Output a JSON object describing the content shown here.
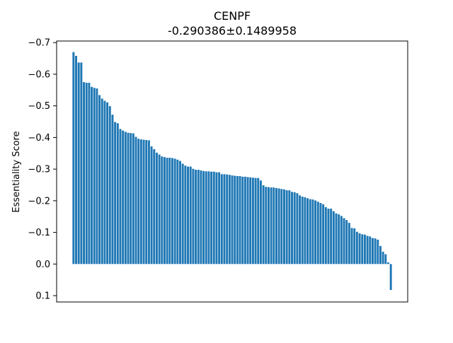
{
  "chart_data": {
    "type": "bar",
    "title": "CENPF",
    "subtitle": "-0.290386±0.1489958",
    "xlabel": "",
    "ylabel": "Essentiality Score",
    "ylim": [
      0.12,
      -0.705
    ],
    "yticks": [
      0.1,
      0.0,
      -0.1,
      -0.2,
      -0.3,
      -0.4,
      -0.5,
      -0.6,
      -0.7
    ],
    "ytick_labels": [
      "0.1",
      "0.0",
      "−0.1",
      "−0.2",
      "−0.3",
      "−0.4",
      "−0.5",
      "−0.6",
      "−0.7"
    ],
    "x_ticks_visible": false,
    "grid": false,
    "bar_color": "#1f77b4",
    "values": [
      -0.67,
      -0.658,
      -0.637,
      -0.637,
      -0.575,
      -0.573,
      -0.573,
      -0.56,
      -0.557,
      -0.555,
      -0.534,
      -0.523,
      -0.516,
      -0.511,
      -0.499,
      -0.472,
      -0.449,
      -0.445,
      -0.427,
      -0.422,
      -0.418,
      -0.415,
      -0.414,
      -0.413,
      -0.402,
      -0.396,
      -0.394,
      -0.393,
      -0.392,
      -0.391,
      -0.372,
      -0.363,
      -0.352,
      -0.346,
      -0.34,
      -0.338,
      -0.336,
      -0.336,
      -0.335,
      -0.333,
      -0.33,
      -0.326,
      -0.317,
      -0.311,
      -0.308,
      -0.308,
      -0.301,
      -0.298,
      -0.298,
      -0.296,
      -0.294,
      -0.293,
      -0.293,
      -0.292,
      -0.292,
      -0.29,
      -0.29,
      -0.284,
      -0.284,
      -0.283,
      -0.282,
      -0.28,
      -0.279,
      -0.278,
      -0.278,
      -0.276,
      -0.276,
      -0.275,
      -0.274,
      -0.273,
      -0.272,
      -0.272,
      -0.264,
      -0.249,
      -0.244,
      -0.243,
      -0.242,
      -0.242,
      -0.24,
      -0.239,
      -0.237,
      -0.236,
      -0.233,
      -0.233,
      -0.228,
      -0.227,
      -0.224,
      -0.217,
      -0.213,
      -0.211,
      -0.208,
      -0.205,
      -0.204,
      -0.201,
      -0.197,
      -0.193,
      -0.189,
      -0.18,
      -0.175,
      -0.175,
      -0.167,
      -0.16,
      -0.157,
      -0.152,
      -0.145,
      -0.139,
      -0.13,
      -0.114,
      -0.113,
      -0.102,
      -0.097,
      -0.094,
      -0.093,
      -0.089,
      -0.087,
      -0.082,
      -0.081,
      -0.077,
      -0.057,
      -0.039,
      -0.031,
      -0.005,
      0.082
    ]
  }
}
